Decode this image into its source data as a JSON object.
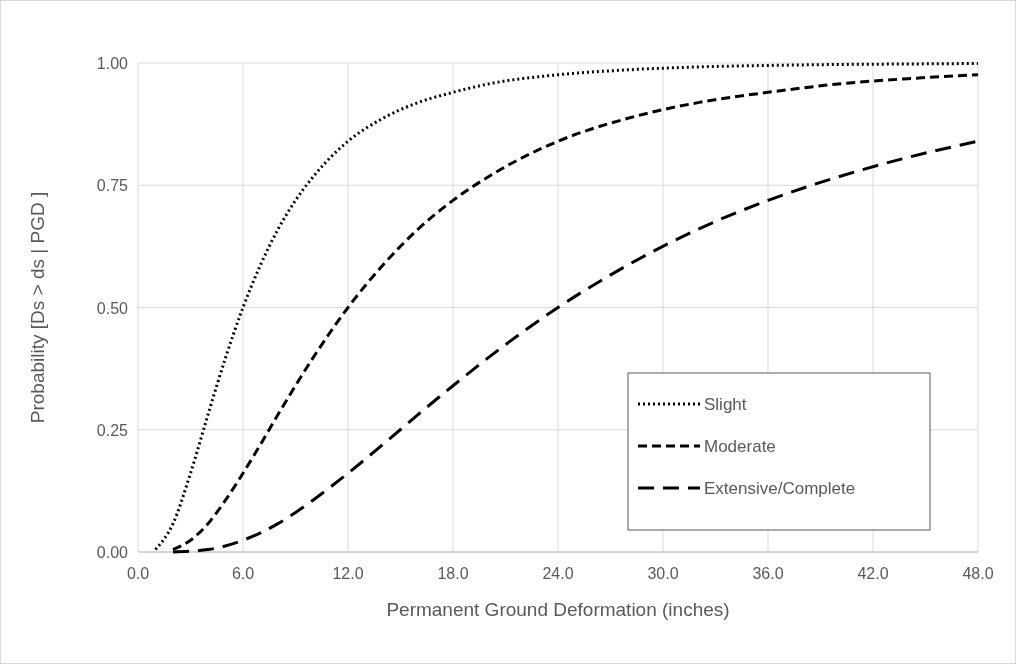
{
  "chart_data": {
    "type": "line",
    "xlabel": "Permanent Ground Deformation (inches)",
    "ylabel": "Probability [Ds > ds  |  PGD ]",
    "xlim": [
      0,
      48
    ],
    "xticks": [
      {
        "value": 0,
        "label": "0.0"
      },
      {
        "value": 6,
        "label": "6.0"
      },
      {
        "value": 12,
        "label": "12.0"
      },
      {
        "value": 18,
        "label": "18.0"
      },
      {
        "value": 24,
        "label": "24.0"
      },
      {
        "value": 30,
        "label": "30.0"
      },
      {
        "value": 36,
        "label": "36.0"
      },
      {
        "value": 42,
        "label": "42.0"
      },
      {
        "value": 48,
        "label": "48.0"
      }
    ],
    "ylim": [
      0,
      1
    ],
    "yticks": [
      {
        "value": 0,
        "label": "0.00"
      },
      {
        "value": 0.25,
        "label": "0.25"
      },
      {
        "value": 0.5,
        "label": "0.50"
      },
      {
        "value": 0.75,
        "label": "0.75"
      },
      {
        "value": 1,
        "label": "1.00"
      }
    ],
    "grid": true,
    "legend": "bottom right",
    "marker": "none",
    "series": [
      {
        "name": "Slight",
        "color": "#000000",
        "line_style": "dotted",
        "x": [
          1,
          2,
          3,
          4,
          5,
          6,
          7,
          8,
          9,
          10,
          12,
          14,
          16,
          18,
          20,
          24,
          28,
          32,
          36,
          40,
          44,
          48
        ],
        "values": [
          0.005,
          0.058,
          0.161,
          0.281,
          0.397,
          0.5,
          0.587,
          0.66,
          0.719,
          0.767,
          0.84,
          0.887,
          0.919,
          0.94,
          0.957,
          0.976,
          0.986,
          0.992,
          0.995,
          0.997,
          0.998,
          0.999
        ]
      },
      {
        "name": "Moderate",
        "color": "#000000",
        "line_style": "dashed",
        "x": [
          2,
          3,
          4,
          5,
          6,
          7,
          8,
          10,
          12,
          14,
          16,
          18,
          20,
          24,
          28,
          32,
          36,
          40,
          44,
          48
        ],
        "values": [
          0.005,
          0.024,
          0.058,
          0.106,
          0.161,
          0.22,
          0.281,
          0.397,
          0.5,
          0.587,
          0.66,
          0.719,
          0.767,
          0.84,
          0.887,
          0.919,
          0.94,
          0.957,
          0.968,
          0.976
        ]
      },
      {
        "name": "Extensive/Complete",
        "color": "#000000",
        "line_style": "dashed",
        "x": [
          2,
          4,
          6,
          8,
          10,
          12,
          14,
          16,
          18,
          20,
          24,
          28,
          32,
          36,
          40,
          44,
          48
        ],
        "values": [
          0,
          0.005,
          0.024,
          0.058,
          0.106,
          0.161,
          0.22,
          0.281,
          0.34,
          0.397,
          0.5,
          0.587,
          0.66,
          0.719,
          0.767,
          0.807,
          0.84
        ]
      }
    ]
  }
}
